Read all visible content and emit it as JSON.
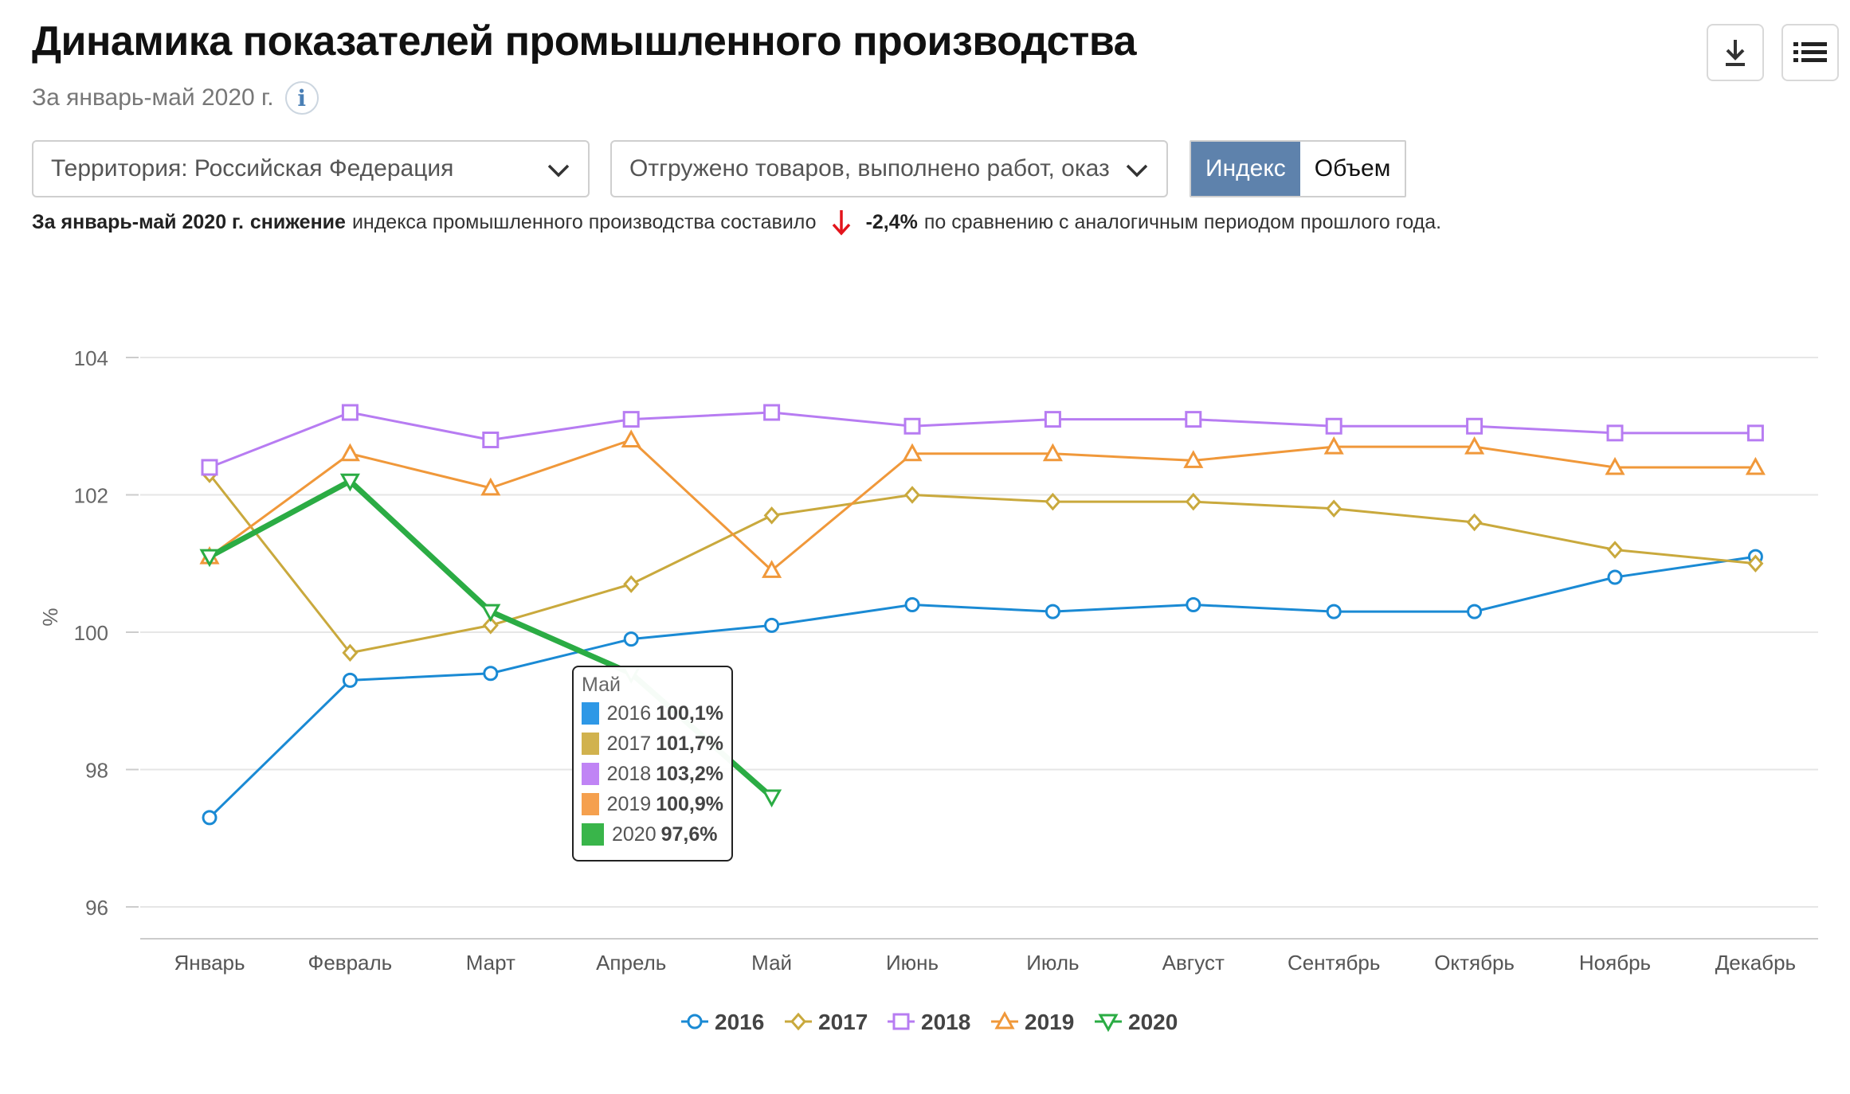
{
  "header": {
    "title": "Динамика показателей промышленного производства",
    "subtitle": "За январь-май 2020 г.",
    "info_icon": "info-icon"
  },
  "toolbar": {
    "download_icon": "download-icon",
    "menu_icon": "list-menu-icon"
  },
  "filters": {
    "territory": "Территория: Российская  Федерация",
    "indicator": "Отгружено товаров, выполнено работ, оказ",
    "toggle": {
      "index_label": "Индекс",
      "volume_label": "Объем",
      "active": "index"
    }
  },
  "summary": {
    "period": "За январь-май 2020 г.",
    "direction": "снижение",
    "text_before": "индекса промышленного производства составило",
    "value": "-2,4%",
    "text_after": "по сравнению с аналогичным периодом прошлого года.",
    "arrow_color": "#e3141c"
  },
  "tooltip": {
    "title": "Май",
    "rows": [
      {
        "year": "2016",
        "value": "100,1%",
        "color": "#2e98e6"
      },
      {
        "year": "2017",
        "value": "101,7%",
        "color": "#d1b24e"
      },
      {
        "year": "2018",
        "value": "103,2%",
        "color": "#c084f5"
      },
      {
        "year": "2019",
        "value": "100,9%",
        "color": "#f5a04e"
      },
      {
        "year": "2020",
        "value": "97,6%",
        "color": "#39b54a"
      }
    ]
  },
  "chart_data": {
    "type": "line",
    "ylabel": "%",
    "ylim": [
      96,
      104
    ],
    "yticks": [
      96,
      98,
      100,
      102,
      104
    ],
    "grid": true,
    "legend_position": "bottom",
    "categories": [
      "Январь",
      "Февраль",
      "Март",
      "Апрель",
      "Май",
      "Июнь",
      "Июль",
      "Август",
      "Сентябрь",
      "Октябрь",
      "Ноябрь",
      "Декабрь"
    ],
    "series": [
      {
        "name": "2016",
        "color": "#1a8ad4",
        "marker": "circle",
        "values": [
          97.3,
          99.3,
          99.4,
          99.9,
          100.1,
          100.4,
          100.3,
          100.4,
          100.3,
          100.3,
          100.8,
          101.1
        ]
      },
      {
        "name": "2017",
        "color": "#c9a93d",
        "marker": "diamond",
        "values": [
          102.3,
          99.7,
          100.1,
          100.7,
          101.7,
          102.0,
          101.9,
          101.9,
          101.8,
          101.6,
          101.2,
          101.0
        ]
      },
      {
        "name": "2018",
        "color": "#b77cf2",
        "marker": "square",
        "values": [
          102.4,
          103.2,
          102.8,
          103.1,
          103.2,
          103.0,
          103.1,
          103.1,
          103.0,
          103.0,
          102.9,
          102.9
        ]
      },
      {
        "name": "2019",
        "color": "#f0983a",
        "marker": "triangle",
        "values": [
          101.1,
          102.6,
          102.1,
          102.8,
          100.9,
          102.6,
          102.6,
          102.5,
          102.7,
          102.7,
          102.4,
          102.4
        ]
      },
      {
        "name": "2020",
        "color": "#2bac44",
        "marker": "triangle-down",
        "values": [
          101.1,
          102.2,
          100.3,
          99.4,
          97.6,
          null,
          null,
          null,
          null,
          null,
          null,
          null
        ]
      }
    ]
  }
}
